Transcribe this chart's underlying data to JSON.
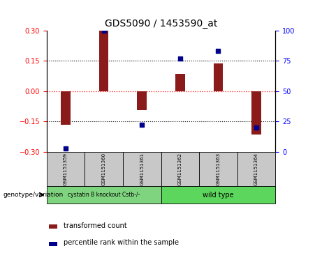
{
  "title": "GDS5090 / 1453590_at",
  "samples": [
    "GSM1151359",
    "GSM1151360",
    "GSM1151361",
    "GSM1151362",
    "GSM1151363",
    "GSM1151364"
  ],
  "bar_values": [
    -0.165,
    0.3,
    -0.095,
    0.085,
    0.135,
    -0.215
  ],
  "percentile_values": [
    3,
    100,
    22,
    77,
    83,
    20
  ],
  "group1_label": "cystatin B knockout Cstb-/-",
  "group2_label": "wild type",
  "group_label": "genotype/variation",
  "group1_color": "#7FD47F",
  "group2_color": "#5CD65C",
  "bar_color": "#8B1A1A",
  "dot_color": "#00008B",
  "ylim_left": [
    -0.3,
    0.3
  ],
  "ylim_right": [
    0,
    100
  ],
  "yticks_left": [
    -0.3,
    -0.15,
    0,
    0.15,
    0.3
  ],
  "yticks_right": [
    0,
    25,
    50,
    75,
    100
  ],
  "legend_bar": "transformed count",
  "legend_dot": "percentile rank within the sample",
  "bg_color": "#c8c8c8",
  "bar_width": 0.25
}
